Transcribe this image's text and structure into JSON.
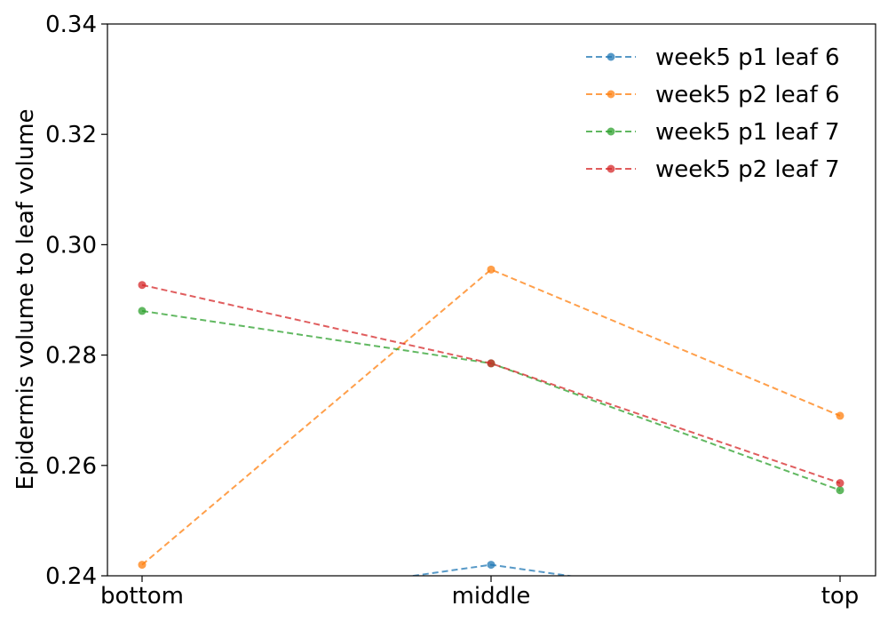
{
  "chart_data": {
    "type": "line",
    "title": "",
    "xlabel": "",
    "ylabel": "Epidermis volume to leaf volume",
    "categories": [
      "bottom",
      "middle",
      "top"
    ],
    "ylim": [
      0.24,
      0.34
    ],
    "yticks": [
      "0.24",
      "0.26",
      "0.28",
      "0.30",
      "0.32",
      "0.34"
    ],
    "grid": false,
    "legend_position": "top-right",
    "series": [
      {
        "name": "week5 p1 leaf 6",
        "color": "#1f77b4",
        "values": [
          0.233,
          0.242,
          0.233
        ]
      },
      {
        "name": "week5 p2 leaf 6",
        "color": "#ff7f0e",
        "values": [
          0.242,
          0.2955,
          0.269
        ]
      },
      {
        "name": "week5 p1 leaf 7",
        "color": "#2ca02c",
        "values": [
          0.288,
          0.2785,
          0.2555
        ]
      },
      {
        "name": "week5 p2 leaf 7",
        "color": "#d62728",
        "values": [
          0.2927,
          0.2785,
          0.2568
        ]
      }
    ]
  }
}
